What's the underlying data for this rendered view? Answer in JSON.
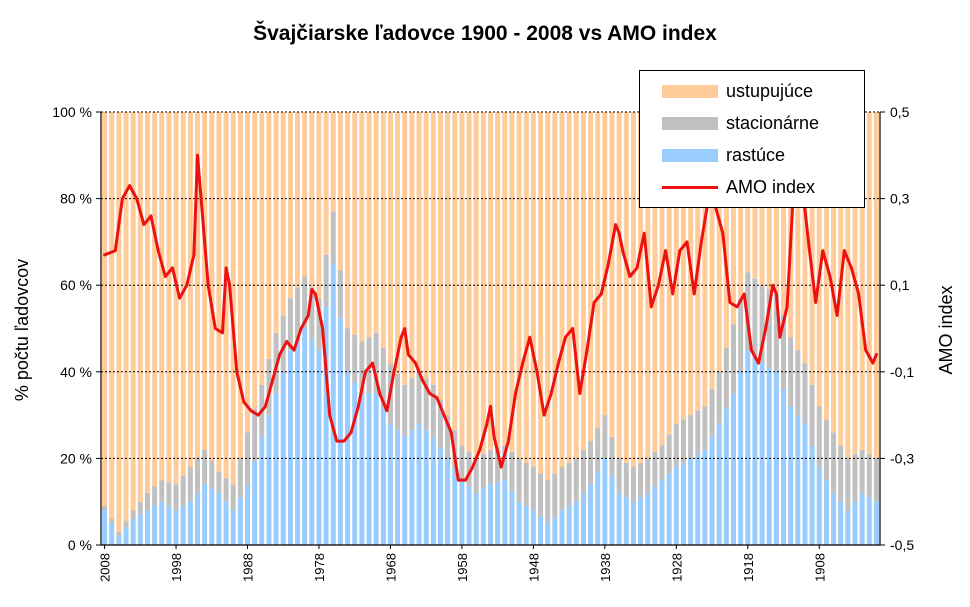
{
  "chart_data": {
    "type": "bar",
    "title": "Švajčiarske ľadovce 1900 - 2008 vs AMO index",
    "ylabel": "% počtu ľadovcov",
    "ylabel_right": "AMO index",
    "ylim": [
      0,
      100
    ],
    "y2lim": [
      -0.5,
      0.5
    ],
    "yticks": [
      "0 %",
      "20 %",
      "40 %",
      "60 %",
      "80 %",
      "100 %"
    ],
    "y2ticks": [
      "-0,5",
      "-0,3",
      "-0,1",
      "0,1",
      "0,3",
      "0,5"
    ],
    "xticks": [
      "2008",
      "1998",
      "1988",
      "1978",
      "1968",
      "1958",
      "1948",
      "1938",
      "1928",
      "1918",
      "1908"
    ],
    "x_start": 2008,
    "x_end": 1900,
    "stacked": true,
    "grid": true,
    "legend": [
      "ustupujúce",
      "stacionárne",
      "rastúce",
      "AMO index"
    ],
    "colors": {
      "ustupujuce": "#FFCC99",
      "stacionarne": "#C0C0C0",
      "rastuce": "#99CCFF",
      "amo": "#EE1111"
    },
    "rastuce_anchors": [
      [
        2008,
        8
      ],
      [
        2006,
        2
      ],
      [
        2004,
        6
      ],
      [
        2002,
        8
      ],
      [
        2000,
        10
      ],
      [
        1998,
        8
      ],
      [
        1996,
        10
      ],
      [
        1994,
        14
      ],
      [
        1992,
        12
      ],
      [
        1990,
        8
      ],
      [
        1988,
        14
      ],
      [
        1986,
        25
      ],
      [
        1984,
        35
      ],
      [
        1982,
        45
      ],
      [
        1980,
        50
      ],
      [
        1978,
        45
      ],
      [
        1976,
        65
      ],
      [
        1974,
        40
      ],
      [
        1972,
        35
      ],
      [
        1970,
        35
      ],
      [
        1968,
        28
      ],
      [
        1966,
        25
      ],
      [
        1964,
        28
      ],
      [
        1962,
        25
      ],
      [
        1960,
        20
      ],
      [
        1958,
        15
      ],
      [
        1956,
        12
      ],
      [
        1954,
        14
      ],
      [
        1952,
        15
      ],
      [
        1950,
        10
      ],
      [
        1948,
        8
      ],
      [
        1946,
        5
      ],
      [
        1944,
        8
      ],
      [
        1942,
        10
      ],
      [
        1940,
        14
      ],
      [
        1938,
        20
      ],
      [
        1936,
        12
      ],
      [
        1934,
        10
      ],
      [
        1932,
        12
      ],
      [
        1930,
        15
      ],
      [
        1928,
        18
      ],
      [
        1926,
        20
      ],
      [
        1924,
        22
      ],
      [
        1922,
        28
      ],
      [
        1920,
        35
      ],
      [
        1918,
        45
      ],
      [
        1916,
        42
      ],
      [
        1914,
        40
      ],
      [
        1912,
        32
      ],
      [
        1910,
        28
      ],
      [
        1908,
        18
      ],
      [
        1906,
        12
      ],
      [
        1904,
        8
      ],
      [
        1902,
        12
      ],
      [
        1900,
        10
      ]
    ],
    "stacionarne_anchors": [
      [
        2008,
        1
      ],
      [
        2006,
        1
      ],
      [
        2004,
        2
      ],
      [
        2002,
        4
      ],
      [
        2000,
        5
      ],
      [
        1998,
        6
      ],
      [
        1996,
        8
      ],
      [
        1994,
        8
      ],
      [
        1992,
        5
      ],
      [
        1990,
        6
      ],
      [
        1988,
        12
      ],
      [
        1986,
        12
      ],
      [
        1984,
        14
      ],
      [
        1982,
        12
      ],
      [
        1980,
        12
      ],
      [
        1978,
        12
      ],
      [
        1976,
        12
      ],
      [
        1974,
        10
      ],
      [
        1972,
        12
      ],
      [
        1970,
        14
      ],
      [
        1968,
        14
      ],
      [
        1966,
        12
      ],
      [
        1964,
        12
      ],
      [
        1962,
        12
      ],
      [
        1960,
        10
      ],
      [
        1958,
        8
      ],
      [
        1956,
        8
      ],
      [
        1954,
        8
      ],
      [
        1952,
        8
      ],
      [
        1950,
        10
      ],
      [
        1948,
        10
      ],
      [
        1946,
        10
      ],
      [
        1944,
        10
      ],
      [
        1942,
        10
      ],
      [
        1940,
        10
      ],
      [
        1938,
        10
      ],
      [
        1936,
        8
      ],
      [
        1934,
        8
      ],
      [
        1932,
        8
      ],
      [
        1930,
        8
      ],
      [
        1928,
        10
      ],
      [
        1926,
        10
      ],
      [
        1924,
        10
      ],
      [
        1922,
        12
      ],
      [
        1920,
        16
      ],
      [
        1918,
        18
      ],
      [
        1916,
        18
      ],
      [
        1914,
        18
      ],
      [
        1912,
        16
      ],
      [
        1910,
        14
      ],
      [
        1908,
        14
      ],
      [
        1906,
        14
      ],
      [
        1904,
        12
      ],
      [
        1902,
        10
      ],
      [
        1900,
        10
      ]
    ],
    "amo_anchors": [
      [
        2008,
        0.17
      ],
      [
        2006.5,
        0.18
      ],
      [
        2005.5,
        0.3
      ],
      [
        2004.5,
        0.33
      ],
      [
        2003.5,
        0.3
      ],
      [
        2002.5,
        0.24
      ],
      [
        2001.5,
        0.26
      ],
      [
        2000.5,
        0.18
      ],
      [
        1999.5,
        0.12
      ],
      [
        1998.5,
        0.14
      ],
      [
        1997.5,
        0.07
      ],
      [
        1996.5,
        0.1
      ],
      [
        1995.5,
        0.17
      ],
      [
        1995,
        0.4
      ],
      [
        1994.5,
        0.3
      ],
      [
        1993.5,
        0.1
      ],
      [
        1992.5,
        0.0
      ],
      [
        1991.5,
        -0.01
      ],
      [
        1991,
        0.14
      ],
      [
        1990.5,
        0.1
      ],
      [
        1989.5,
        -0.1
      ],
      [
        1988.5,
        -0.17
      ],
      [
        1987.5,
        -0.19
      ],
      [
        1986.5,
        -0.2
      ],
      [
        1985.5,
        -0.18
      ],
      [
        1984.5,
        -0.12
      ],
      [
        1983.5,
        -0.06
      ],
      [
        1982.5,
        -0.03
      ],
      [
        1981.5,
        -0.05
      ],
      [
        1980.5,
        0.0
      ],
      [
        1979.5,
        0.03
      ],
      [
        1979,
        0.09
      ],
      [
        1978.5,
        0.08
      ],
      [
        1977.5,
        0.0
      ],
      [
        1976.5,
        -0.2
      ],
      [
        1975.5,
        -0.26
      ],
      [
        1974.5,
        -0.26
      ],
      [
        1973.5,
        -0.24
      ],
      [
        1972.5,
        -0.18
      ],
      [
        1971.5,
        -0.1
      ],
      [
        1970.5,
        -0.08
      ],
      [
        1969.5,
        -0.15
      ],
      [
        1968.5,
        -0.19
      ],
      [
        1967.5,
        -0.1
      ],
      [
        1966.5,
        -0.02
      ],
      [
        1966,
        0.0
      ],
      [
        1965.5,
        -0.06
      ],
      [
        1964.5,
        -0.08
      ],
      [
        1963.5,
        -0.12
      ],
      [
        1962.5,
        -0.15
      ],
      [
        1961.5,
        -0.16
      ],
      [
        1960.5,
        -0.2
      ],
      [
        1959.5,
        -0.24
      ],
      [
        1958.5,
        -0.35
      ],
      [
        1957.5,
        -0.35
      ],
      [
        1956.5,
        -0.32
      ],
      [
        1955.5,
        -0.28
      ],
      [
        1954.5,
        -0.22
      ],
      [
        1954,
        -0.18
      ],
      [
        1953.5,
        -0.25
      ],
      [
        1952.5,
        -0.32
      ],
      [
        1951.5,
        -0.26
      ],
      [
        1950.5,
        -0.15
      ],
      [
        1949.5,
        -0.08
      ],
      [
        1948.5,
        -0.02
      ],
      [
        1947.5,
        -0.1
      ],
      [
        1946.5,
        -0.2
      ],
      [
        1945.5,
        -0.15
      ],
      [
        1944.5,
        -0.08
      ],
      [
        1943.5,
        -0.02
      ],
      [
        1942.5,
        0.0
      ],
      [
        1941.5,
        -0.15
      ],
      [
        1940.5,
        -0.05
      ],
      [
        1939.5,
        0.06
      ],
      [
        1938.5,
        0.08
      ],
      [
        1937.5,
        0.15
      ],
      [
        1936.5,
        0.24
      ],
      [
        1936,
        0.22
      ],
      [
        1935.5,
        0.18
      ],
      [
        1934.5,
        0.12
      ],
      [
        1933.5,
        0.14
      ],
      [
        1932.5,
        0.22
      ],
      [
        1931.5,
        0.05
      ],
      [
        1930.5,
        0.1
      ],
      [
        1929.5,
        0.18
      ],
      [
        1928.5,
        0.08
      ],
      [
        1927.5,
        0.18
      ],
      [
        1926.5,
        0.2
      ],
      [
        1925.5,
        0.08
      ],
      [
        1924.5,
        0.2
      ],
      [
        1923.5,
        0.3
      ],
      [
        1922.5,
        0.28
      ],
      [
        1921.5,
        0.22
      ],
      [
        1920.5,
        0.06
      ],
      [
        1919.5,
        0.05
      ],
      [
        1918.5,
        0.08
      ],
      [
        1917.5,
        -0.05
      ],
      [
        1916.5,
        -0.08
      ],
      [
        1915.5,
        0.0
      ],
      [
        1914.5,
        0.1
      ],
      [
        1914,
        0.08
      ],
      [
        1913.5,
        -0.02
      ],
      [
        1912.5,
        0.05
      ],
      [
        1911.5,
        0.35
      ],
      [
        1910.5,
        0.35
      ],
      [
        1909.5,
        0.2
      ],
      [
        1908.5,
        0.06
      ],
      [
        1907.5,
        0.18
      ],
      [
        1906.5,
        0.12
      ],
      [
        1905.5,
        0.03
      ],
      [
        1904.5,
        0.18
      ],
      [
        1903.5,
        0.14
      ],
      [
        1902.5,
        0.08
      ],
      [
        1901.5,
        -0.05
      ],
      [
        1900.5,
        -0.08
      ],
      [
        1900,
        -0.06
      ]
    ]
  },
  "legend_labels": {
    "ustupujuce": "ustupujúce",
    "stacionarne": "stacionárne",
    "rastuce": "rastúce",
    "amo": "AMO index"
  }
}
